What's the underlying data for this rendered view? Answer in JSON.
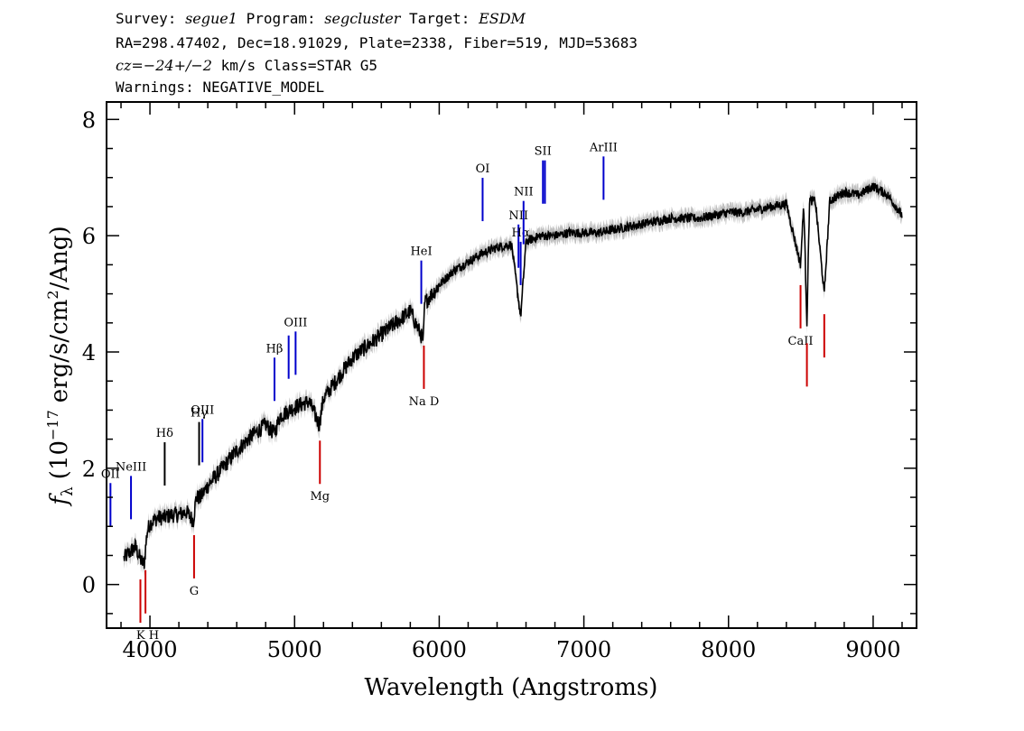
{
  "header": {
    "line1": {
      "survey_label": "Survey:",
      "survey": "segue1",
      "program_label": "Program:",
      "program": "segcluster",
      "target_label": "Target:",
      "target": "ESDM"
    },
    "line2": "RA=298.47402, Dec=18.91029, Plate=2338, Fiber=519, MJD=53683",
    "line3": {
      "cz_label": "cz=",
      "cz_value": "−24+/−2",
      "cz_rest": " km/s Class=STAR G5"
    },
    "line4": "Warnings: NEGATIVE_MODEL"
  },
  "chart_data": {
    "type": "line",
    "xlabel": "Wavelength (Angstroms)",
    "ylabel_prefix": "f",
    "ylabel_sub": "λ",
    "ylabel_paren": "(10",
    "ylabel_exp": "−17",
    "ylabel_units": "erg/s/cm",
    "ylabel_sq": "2",
    "ylabel_tail": "/Ang)",
    "xlim": [
      3700,
      9300
    ],
    "ylim": [
      -0.75,
      8.3
    ],
    "xticks": [
      4000,
      5000,
      6000,
      7000,
      8000,
      9000
    ],
    "yticks": [
      0,
      2,
      4,
      6,
      8
    ],
    "x_tick_labels": [
      "4000",
      "5000",
      "6000",
      "7000",
      "8000",
      "9000"
    ],
    "y_tick_labels": [
      "0",
      "2",
      "4",
      "6",
      "8"
    ],
    "series": [
      {
        "color": "#000000",
        "spectrum": [
          [
            3820,
            0.45
          ],
          [
            3860,
            0.55
          ],
          [
            3900,
            0.65
          ],
          [
            3940,
            0.4
          ],
          [
            3960,
            0.35
          ],
          [
            3980,
            0.9
          ],
          [
            4000,
            1.05
          ],
          [
            4050,
            1.15
          ],
          [
            4100,
            1.15
          ],
          [
            4150,
            1.2
          ],
          [
            4200,
            1.2
          ],
          [
            4250,
            1.25
          ],
          [
            4300,
            1.1
          ],
          [
            4320,
            1.5
          ],
          [
            4350,
            1.5
          ],
          [
            4400,
            1.7
          ],
          [
            4500,
            2.0
          ],
          [
            4600,
            2.3
          ],
          [
            4700,
            2.55
          ],
          [
            4800,
            2.75
          ],
          [
            4860,
            2.6
          ],
          [
            4900,
            2.9
          ],
          [
            5000,
            3.05
          ],
          [
            5100,
            3.15
          ],
          [
            5170,
            2.75
          ],
          [
            5200,
            3.2
          ],
          [
            5300,
            3.55
          ],
          [
            5400,
            3.9
          ],
          [
            5500,
            4.1
          ],
          [
            5600,
            4.3
          ],
          [
            5700,
            4.5
          ],
          [
            5800,
            4.7
          ],
          [
            5890,
            4.2
          ],
          [
            5900,
            4.85
          ],
          [
            6000,
            5.15
          ],
          [
            6100,
            5.4
          ],
          [
            6200,
            5.55
          ],
          [
            6300,
            5.7
          ],
          [
            6400,
            5.8
          ],
          [
            6500,
            5.85
          ],
          [
            6563,
            4.6
          ],
          [
            6600,
            5.9
          ],
          [
            6700,
            6.0
          ],
          [
            6800,
            6.0
          ],
          [
            6900,
            6.05
          ],
          [
            7000,
            6.05
          ],
          [
            7100,
            6.05
          ],
          [
            7200,
            6.1
          ],
          [
            7300,
            6.15
          ],
          [
            7400,
            6.2
          ],
          [
            7500,
            6.25
          ],
          [
            7600,
            6.3
          ],
          [
            7700,
            6.3
          ],
          [
            7800,
            6.3
          ],
          [
            7900,
            6.35
          ],
          [
            8000,
            6.4
          ],
          [
            8100,
            6.4
          ],
          [
            8200,
            6.45
          ],
          [
            8300,
            6.5
          ],
          [
            8400,
            6.55
          ],
          [
            8498,
            5.5
          ],
          [
            8520,
            6.55
          ],
          [
            8542,
            4.5
          ],
          [
            8560,
            6.6
          ],
          [
            8600,
            6.6
          ],
          [
            8662,
            5.0
          ],
          [
            8700,
            6.6
          ],
          [
            8800,
            6.75
          ],
          [
            8900,
            6.7
          ],
          [
            9000,
            6.85
          ],
          [
            9100,
            6.7
          ],
          [
            9200,
            6.35
          ]
        ]
      },
      {
        "color": "#c0c0c0",
        "note_band": true
      }
    ],
    "emission_lines": [
      {
        "wave": 3727,
        "label": "OII",
        "color": "#0000cc"
      },
      {
        "wave": 3869,
        "label": "NeIII",
        "color": "#0000cc"
      },
      {
        "wave": 4102,
        "label": "Hδ",
        "color": "#000000"
      },
      {
        "wave": 4340,
        "label": "Hγ",
        "color": "#000000"
      },
      {
        "wave": 4363,
        "label": "OIII",
        "color": "#0000cc"
      },
      {
        "wave": 4861,
        "label": "Hβ",
        "color": "#0000cc"
      },
      {
        "wave": 4959,
        "label": "",
        "color": "#0000cc"
      },
      {
        "wave": 5007,
        "label": "OIII",
        "color": "#0000cc"
      },
      {
        "wave": 5876,
        "label": "HeI",
        "color": "#0000cc"
      },
      {
        "wave": 6300,
        "label": "OI",
        "color": "#0000cc"
      },
      {
        "wave": 6548,
        "label": "NII",
        "color": "#0000cc"
      },
      {
        "wave": 6563,
        "label": "Hα",
        "color": "#0000cc"
      },
      {
        "wave": 6583,
        "label": "NII",
        "color": "#0000cc"
      },
      {
        "wave": 6717,
        "label": "SII",
        "color": "#0000cc"
      },
      {
        "wave": 6731,
        "label": "",
        "color": "#0000cc"
      },
      {
        "wave": 7136,
        "label": "ArIII",
        "color": "#0000cc"
      }
    ],
    "absorption_lines": [
      {
        "wave": 3934,
        "label": "K H",
        "color": "#cc0000"
      },
      {
        "wave": 3969,
        "label": "",
        "color": "#cc0000"
      },
      {
        "wave": 4305,
        "label": "G",
        "color": "#cc0000"
      },
      {
        "wave": 5175,
        "label": "Mg",
        "color": "#cc0000"
      },
      {
        "wave": 5894,
        "label": "Na D",
        "color": "#cc0000"
      },
      {
        "wave": 8498,
        "label": "CaII",
        "color": "#cc0000"
      },
      {
        "wave": 8542,
        "label": "",
        "color": "#cc0000"
      },
      {
        "wave": 8662,
        "label": "",
        "color": "#cc0000"
      }
    ]
  }
}
